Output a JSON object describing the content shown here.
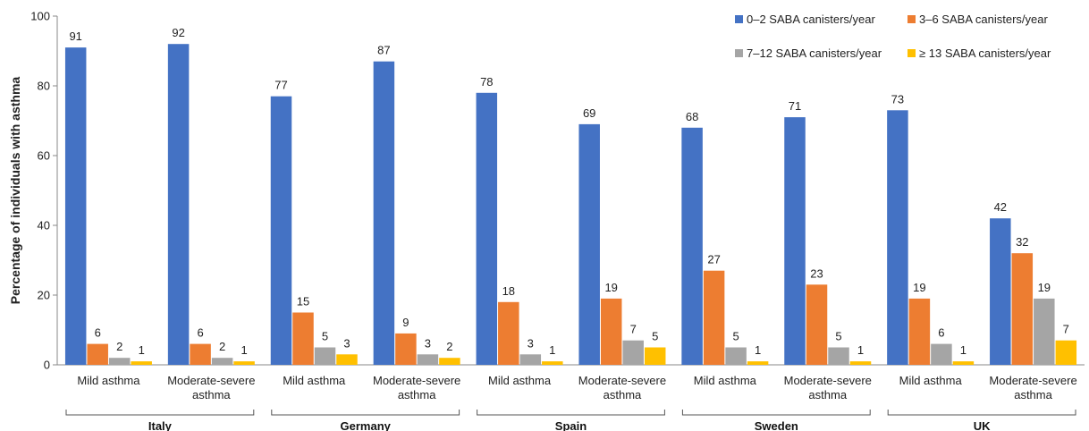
{
  "chart_data": {
    "type": "bar",
    "ylabel": "Percentage of individuals with asthma",
    "xlabel": "",
    "ylim": [
      0,
      100
    ],
    "yticks": [
      0,
      20,
      40,
      60,
      80,
      100
    ],
    "grid": false,
    "legend_position": "top-right",
    "groups": [
      "Italy",
      "Germany",
      "Spain",
      "Sweden",
      "UK"
    ],
    "categories": [
      {
        "group": "Italy",
        "label": [
          "Mild asthma"
        ]
      },
      {
        "group": "Italy",
        "label": [
          "Moderate-severe",
          "asthma"
        ]
      },
      {
        "group": "Germany",
        "label": [
          "Mild asthma"
        ]
      },
      {
        "group": "Germany",
        "label": [
          "Moderate-severe",
          "asthma"
        ]
      },
      {
        "group": "Spain",
        "label": [
          "Mild asthma"
        ]
      },
      {
        "group": "Spain",
        "label": [
          "Moderate-severe",
          "asthma"
        ]
      },
      {
        "group": "Sweden",
        "label": [
          "Mild asthma"
        ]
      },
      {
        "group": "Sweden",
        "label": [
          "Moderate-severe",
          "asthma"
        ]
      },
      {
        "group": "UK",
        "label": [
          "Mild asthma"
        ]
      },
      {
        "group": "UK",
        "label": [
          "Moderate-severe",
          "asthma"
        ]
      }
    ],
    "series": [
      {
        "name": "0–2 SABA canisters/year",
        "color": "#4472C4",
        "values": [
          91,
          92,
          77,
          87,
          78,
          69,
          68,
          71,
          73,
          42
        ]
      },
      {
        "name": "3–6 SABA canisters/year",
        "color": "#ED7D31",
        "values": [
          6,
          6,
          15,
          9,
          18,
          19,
          27,
          23,
          19,
          32
        ]
      },
      {
        "name": "7–12 SABA canisters/year",
        "color": "#A5A5A5",
        "values": [
          2,
          2,
          5,
          3,
          3,
          7,
          5,
          5,
          6,
          19
        ]
      },
      {
        "name": "≥ 13 SABA canisters/year",
        "color": "#FFC000",
        "values": [
          1,
          1,
          3,
          2,
          1,
          5,
          1,
          1,
          1,
          7
        ]
      }
    ]
  }
}
